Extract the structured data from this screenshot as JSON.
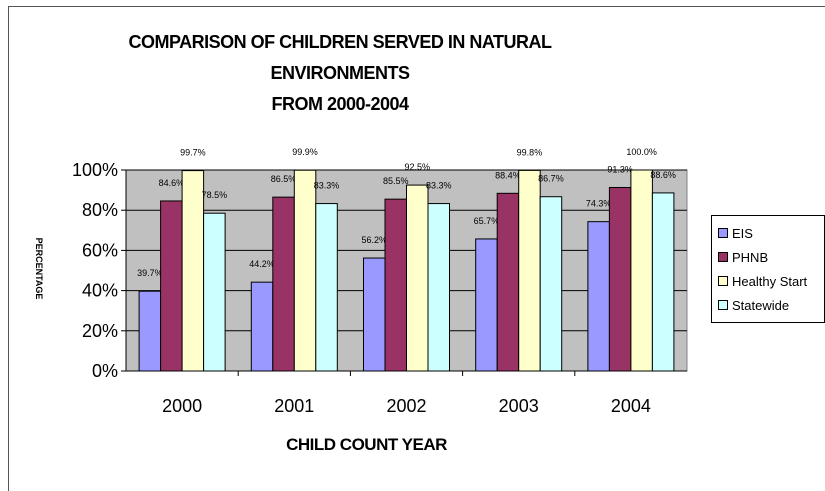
{
  "chart_data": {
    "type": "bar",
    "title_lines": [
      "COMPARISON OF CHILDREN SERVED IN NATURAL",
      "ENVIRONMENTS",
      "FROM 2000-2004"
    ],
    "xlabel": "CHILD COUNT YEAR",
    "ylabel": "PERCENTAGE",
    "ylim": [
      0,
      100
    ],
    "yticks": [
      "0%",
      "20%",
      "40%",
      "60%",
      "80%",
      "100%"
    ],
    "categories": [
      "2000",
      "2001",
      "2002",
      "2003",
      "2004"
    ],
    "grid": true,
    "legend_position": "right",
    "plot_background": "#c0c0c0",
    "series": [
      {
        "name": "EIS",
        "color": "#9999ff",
        "values": [
          39.7,
          44.2,
          56.2,
          65.7,
          74.3
        ],
        "labels": [
          "39.7%",
          "44.2%",
          "56.2%",
          "65.7%",
          "74.3%"
        ]
      },
      {
        "name": "PHNB",
        "color": "#993366",
        "values": [
          84.6,
          86.5,
          85.5,
          88.4,
          91.3
        ],
        "labels": [
          "84.6%",
          "86.5%",
          "85.5%",
          "88.4%",
          "91.3%"
        ]
      },
      {
        "name": "Healthy Start",
        "color": "#ffffcc",
        "values": [
          99.7,
          99.9,
          92.5,
          99.8,
          100.0
        ],
        "labels": [
          "99.7%",
          "99.9%",
          "92.5%",
          "99.8%",
          "100.0%"
        ]
      },
      {
        "name": "Statewide",
        "color": "#ccffff",
        "values": [
          78.5,
          83.3,
          83.3,
          86.7,
          88.6
        ],
        "labels": [
          "78.5%",
          "83.3%",
          "83.3%",
          "86.7%",
          "88.6%"
        ]
      }
    ]
  }
}
